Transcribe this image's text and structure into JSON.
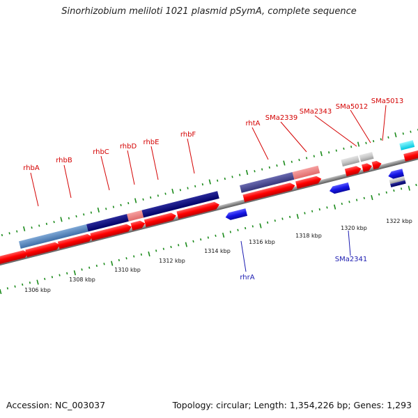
{
  "title": "Sinorhizobium meliloti 1021 plasmid pSymA, complete sequence",
  "footer": {
    "accession": "Accession: NC_003037",
    "summary": "Topology: circular; Length: 1,354,226 bp; Genes: 1,293"
  },
  "colors": {
    "cds": "#ff0000",
    "gene_reverse": "#1515e6",
    "pseudo": "#c8c8c8",
    "label_forward": "#d40000",
    "label_reverse": "#1a1ab0",
    "tick": "#1a8a1a",
    "axis": "#808080"
  },
  "axis_ticks": [
    "1306 kbp",
    "1308 kbp",
    "1310 kbp",
    "1312 kbp",
    "1314 kbp",
    "1316 kbp",
    "1318 kbp",
    "1320 kbp",
    "1322 kbp"
  ],
  "forward_labels": [
    "rhbA",
    "rhbB",
    "rhbC",
    "rhbD",
    "rhbE",
    "rhbF",
    "rhtA",
    "SMa2339",
    "SMa2343",
    "SMa5012",
    "SMa5013"
  ],
  "reverse_labels": [
    "rhrA",
    "SMa2341"
  ]
}
